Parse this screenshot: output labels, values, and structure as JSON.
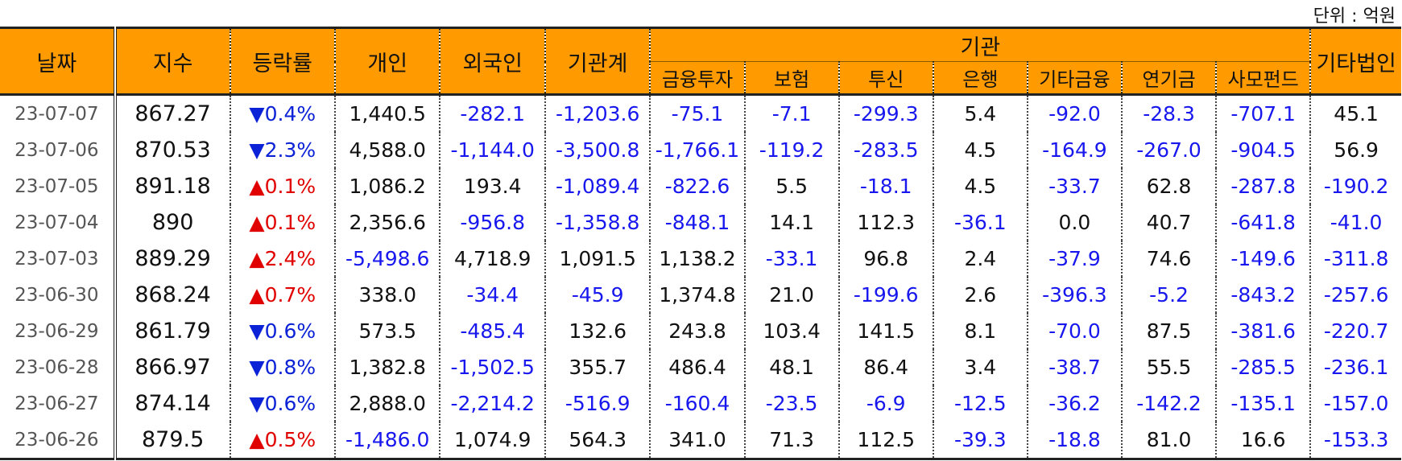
{
  "unit_label": "단위 : 억원",
  "headers": {
    "date": "날짜",
    "index": "지수",
    "change": "등락률",
    "individual": "개인",
    "foreign": "외국인",
    "inst_total": "기관계",
    "institution": "기관",
    "inst_sub": [
      "금융투자",
      "보험",
      "투신",
      "은행",
      "기타금융",
      "연기금",
      "사모펀드"
    ],
    "other_corp": "기타법인"
  },
  "rows": [
    {
      "date": "23-07-07",
      "index": "867.27",
      "change": "▼0.4%",
      "dir": "down",
      "vals": [
        "1,440.5",
        "-282.1",
        "-1,203.6",
        "-75.1",
        "-7.1",
        "-299.3",
        "5.4",
        "-92.0",
        "-28.3",
        "-707.1",
        "45.1"
      ]
    },
    {
      "date": "23-07-06",
      "index": "870.53",
      "change": "▼2.3%",
      "dir": "down",
      "vals": [
        "4,588.0",
        "-1,144.0",
        "-3,500.8",
        "-1,766.1",
        "-119.2",
        "-283.5",
        "4.5",
        "-164.9",
        "-267.0",
        "-904.5",
        "56.9"
      ]
    },
    {
      "date": "23-07-05",
      "index": "891.18",
      "change": "▲0.1%",
      "dir": "up",
      "vals": [
        "1,086.2",
        "193.4",
        "-1,089.4",
        "-822.6",
        "5.5",
        "-18.1",
        "4.5",
        "-33.7",
        "62.8",
        "-287.8",
        "-190.2"
      ]
    },
    {
      "date": "23-07-04",
      "index": "890",
      "change": "▲0.1%",
      "dir": "up",
      "vals": [
        "2,356.6",
        "-956.8",
        "-1,358.8",
        "-848.1",
        "14.1",
        "112.3",
        "-36.1",
        "0.0",
        "40.7",
        "-641.8",
        "-41.0"
      ]
    },
    {
      "date": "23-07-03",
      "index": "889.29",
      "change": "▲2.4%",
      "dir": "up",
      "vals": [
        "-5,498.6",
        "4,718.9",
        "1,091.5",
        "1,138.2",
        "-33.1",
        "96.8",
        "2.4",
        "-37.9",
        "74.6",
        "-149.6",
        "-311.8"
      ]
    },
    {
      "date": "23-06-30",
      "index": "868.24",
      "change": "▲0.7%",
      "dir": "up",
      "vals": [
        "338.0",
        "-34.4",
        "-45.9",
        "1,374.8",
        "21.0",
        "-199.6",
        "2.6",
        "-396.3",
        "-5.2",
        "-843.2",
        "-257.6"
      ]
    },
    {
      "date": "23-06-29",
      "index": "861.79",
      "change": "▼0.6%",
      "dir": "down",
      "vals": [
        "573.5",
        "-485.4",
        "132.6",
        "243.8",
        "103.4",
        "141.5",
        "8.1",
        "-70.0",
        "87.5",
        "-381.6",
        "-220.7"
      ]
    },
    {
      "date": "23-06-28",
      "index": "866.97",
      "change": "▼0.8%",
      "dir": "down",
      "vals": [
        "1,382.8",
        "-1,502.5",
        "355.7",
        "486.4",
        "48.1",
        "86.4",
        "3.4",
        "-38.7",
        "55.5",
        "-285.5",
        "-236.1"
      ]
    },
    {
      "date": "23-06-27",
      "index": "874.14",
      "change": "▼0.6%",
      "dir": "down",
      "vals": [
        "2,888.0",
        "-2,214.2",
        "-516.9",
        "-160.4",
        "-23.5",
        "-6.9",
        "-12.5",
        "-36.2",
        "-142.2",
        "-135.1",
        "-157.0"
      ]
    },
    {
      "date": "23-06-26",
      "index": "879.5",
      "change": "▲0.5%",
      "dir": "up",
      "vals": [
        "-1,486.0",
        "1,074.9",
        "564.3",
        "341.0",
        "71.3",
        "112.5",
        "-39.3",
        "-18.8",
        "81.0",
        "16.6",
        "-153.3"
      ]
    }
  ]
}
